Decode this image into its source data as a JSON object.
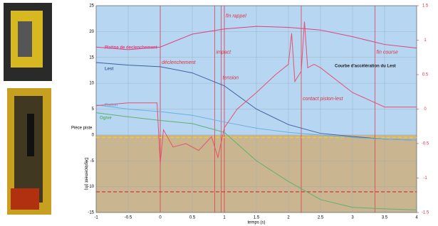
{
  "chart_data": {
    "type": "line",
    "x_label": "temps (s)",
    "y_label": "Déplacement (m)",
    "xlim": [
      -1,
      4
    ],
    "xticks": [
      -1,
      -0.5,
      0,
      0.5,
      1,
      1.5,
      2,
      2.5,
      3,
      3.5,
      4
    ],
    "ylim": [
      -15,
      25
    ],
    "yticks": [
      -15,
      -10,
      -5,
      0,
      5,
      10,
      15,
      20,
      25
    ],
    "y2lim": [
      -1.5,
      1.5
    ],
    "y2ticks": [
      -1.5,
      -1,
      -0.5,
      0,
      0.5,
      1,
      1.5
    ],
    "grid": true,
    "series": [
      {
        "name": "Platine de declenchement",
        "color": "#e0407a",
        "x": [
          -1,
          -0.5,
          0,
          0.5,
          1,
          1.5,
          2,
          2.5,
          3,
          3.5,
          4
        ],
        "values": [
          17,
          16.5,
          17,
          19.5,
          20.5,
          21,
          20.8,
          20.3,
          19,
          17.5,
          16.8
        ]
      },
      {
        "name": "Lest",
        "color": "#4060a0",
        "x": [
          -1,
          -0.5,
          0,
          0.5,
          1,
          1.5,
          2,
          2.5,
          3,
          3.5,
          4
        ],
        "values": [
          14,
          13.5,
          13.2,
          12,
          9.5,
          5,
          2,
          0.3,
          -0.3,
          -0.8,
          -1
        ]
      },
      {
        "name": "Piston",
        "color": "#6ab0e0",
        "x": [
          -1,
          -0.5,
          0,
          0.5,
          1,
          1.5,
          2,
          2.5,
          3,
          3.5,
          4
        ],
        "values": [
          5.8,
          5,
          4.5,
          3.8,
          2.5,
          1.3,
          0.5,
          0,
          -0.5,
          -0.8,
          -1
        ]
      },
      {
        "name": "Ogive",
        "color": "#60b070",
        "x": [
          -1,
          -0.5,
          0,
          0.5,
          1,
          1.5,
          2,
          2.5,
          3,
          3.5,
          4
        ],
        "values": [
          4.3,
          3.5,
          2.8,
          2.2,
          0.5,
          -5,
          -9,
          -12.5,
          -14,
          -14.3,
          -14.5
        ]
      },
      {
        "name": "Courbe d'accélération du Lest",
        "color": "#e85070",
        "axis": "y2",
        "x": [
          -1,
          -0.5,
          -0.05,
          0,
          0.05,
          0.2,
          0.4,
          0.6,
          0.8,
          0.9,
          1,
          1.2,
          1.5,
          1.8,
          2,
          2.05,
          2.1,
          2.2,
          2.25,
          2.3,
          2.4,
          2.5,
          3,
          3.5,
          4
        ],
        "values": [
          0.05,
          0.09,
          0.09,
          -0.79,
          -0.3,
          -0.55,
          -0.5,
          -0.6,
          -0.4,
          -0.7,
          -0.27,
          0,
          0.24,
          0.5,
          0.65,
          1.1,
          0.4,
          0.55,
          1.27,
          0.6,
          0.65,
          0.6,
          0.24,
          0.03,
          0.03
        ]
      }
    ],
    "pointer_label": "Pièce piste",
    "annotations": [
      {
        "text": "déclenchement",
        "x": 0,
        "y": 14
      },
      {
        "text": "impact",
        "x": 0.85,
        "y": 16
      },
      {
        "text": "tension",
        "x": 0.95,
        "y": 11
      },
      {
        "text": "fin rappel",
        "x": 1,
        "y": 23
      },
      {
        "text": "contact piston-lest",
        "x": 2.2,
        "y": 7
      },
      {
        "text": "fin course",
        "x": 3.35,
        "y": 16
      }
    ],
    "hlines": [
      {
        "y": -0.5,
        "color": "#f0d020"
      },
      {
        "y": -11,
        "color": "#e03040"
      }
    ]
  }
}
